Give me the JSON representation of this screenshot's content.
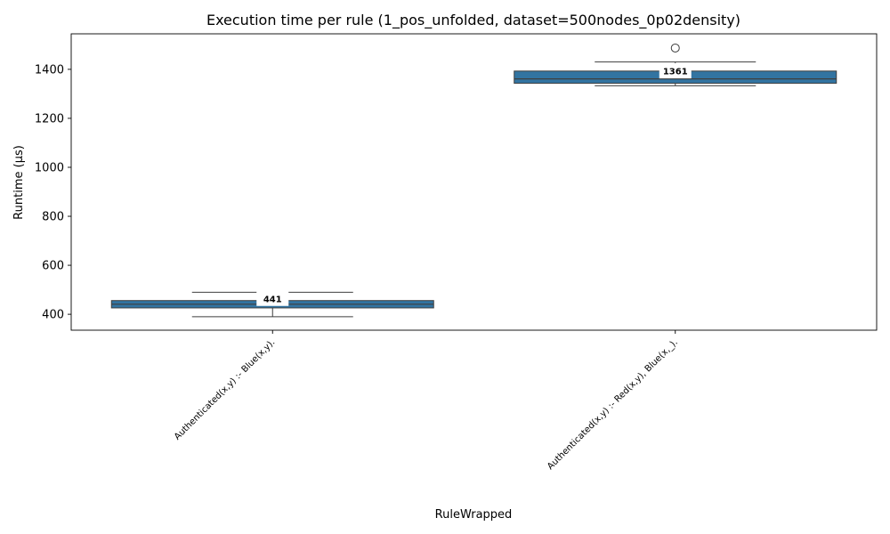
{
  "chart_data": {
    "type": "box",
    "title": "Execution time per rule (1_pos_unfolded, dataset=500nodes_0p02density)",
    "xlabel": "RuleWrapped",
    "ylabel": "Runtime (µs)",
    "ylim": [
      335,
      1545
    ],
    "yticks": [
      400,
      600,
      800,
      1000,
      1200,
      1400
    ],
    "grid": false,
    "box_color": "#3274a1",
    "categories": [
      "Authenticated(x,y) :-     Blue(x,y).",
      "Authenticated(x,y) :-     Red(x,y),    Blue(x,_)."
    ],
    "boxes": [
      {
        "category": "Authenticated(x,y) :-     Blue(x,y).",
        "whisker_low": 390,
        "q1": 426,
        "median": 441,
        "q3": 456,
        "whisker_high": 490,
        "outliers": [],
        "median_label": "441"
      },
      {
        "category": "Authenticated(x,y) :-     Red(x,y),    Blue(x,_).",
        "whisker_low": 1333,
        "q1": 1343,
        "median": 1361,
        "q3": 1393,
        "whisker_high": 1430,
        "outliers": [
          1487
        ],
        "median_label": "1361"
      }
    ]
  }
}
